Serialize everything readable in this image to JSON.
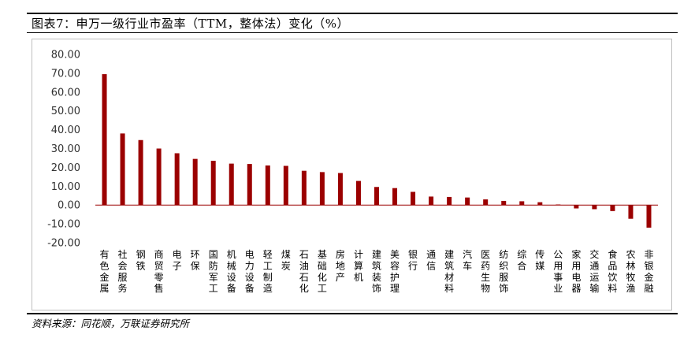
{
  "figure": {
    "title": "图表7：申万一级行业市盈率（TTM，整体法）变化（%）",
    "source": "资料来源：同花顺，万联证券研究所"
  },
  "colors": {
    "bar": "#9b0000",
    "zero_line": "#9b0000",
    "frame": "#bfbfbf"
  },
  "chart_data": {
    "type": "bar",
    "categories": [
      "有色金属",
      "社会服务",
      "钢铁",
      "商贸零售",
      "电子",
      "环保",
      "国防军工",
      "机械设备",
      "电力设备",
      "轻工制造",
      "煤炭",
      "石油石化",
      "基础化工",
      "房地产",
      "计算机",
      "建筑装饰",
      "美容护理",
      "银行",
      "通信",
      "建筑材料",
      "汽车",
      "医药生物",
      "纺织服饰",
      "综合",
      "传媒",
      "公用事业",
      "家用电器",
      "交通运输",
      "食品饮料",
      "农林牧渔",
      "非银金融"
    ],
    "values": [
      69.5,
      38.0,
      34.5,
      30.0,
      27.5,
      24.5,
      23.5,
      22.0,
      21.8,
      21.0,
      20.8,
      18.2,
      17.5,
      17.0,
      12.8,
      9.6,
      9.0,
      7.0,
      4.5,
      4.3,
      4.0,
      3.0,
      2.2,
      2.0,
      1.5,
      0.3,
      -1.8,
      -2.2,
      -3.2,
      -7.3,
      -12.0
    ],
    "ylim": [
      -20,
      80
    ],
    "yticks": [
      "80.00",
      "70.00",
      "60.00",
      "50.00",
      "40.00",
      "30.00",
      "20.00",
      "10.00",
      "0.00",
      "-10.00",
      "-20.00"
    ],
    "grid": false,
    "legend": "none"
  }
}
